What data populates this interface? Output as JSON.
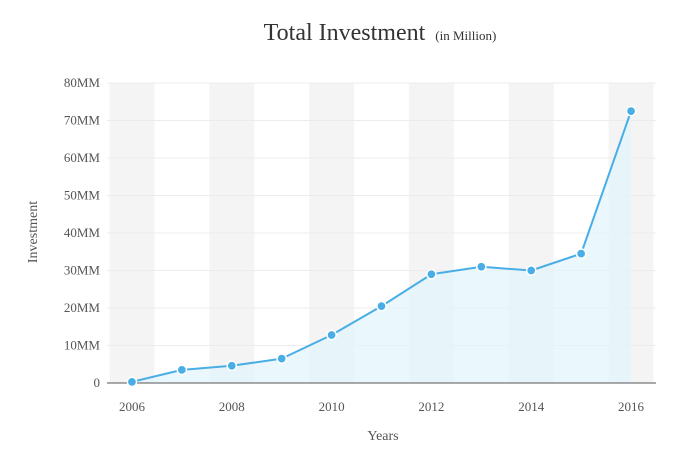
{
  "chart_data": {
    "type": "area",
    "title": "Total Investment",
    "subtitle": "(in Million)",
    "xlabel": "Years",
    "ylabel": "Investment",
    "x": [
      2006,
      2007,
      2008,
      2009,
      2010,
      2011,
      2012,
      2013,
      2014,
      2015,
      2016
    ],
    "series": [
      {
        "values": [
          0.3,
          3.5,
          4.6,
          6.5,
          12.8,
          20.5,
          29,
          31,
          30,
          34.5,
          72.5
        ]
      }
    ],
    "xlim": [
      2005.5,
      2016.5
    ],
    "ylim": [
      0,
      80
    ],
    "x_ticks": [
      "2006",
      "2008",
      "2010",
      "2012",
      "2014",
      "2016"
    ],
    "y_ticks": [
      "0",
      "10MM",
      "20MM",
      "30MM",
      "40MM",
      "50MM",
      "60MM",
      "70MM",
      "80MM"
    ],
    "grid": true,
    "alternating_bands": true,
    "colors": {
      "line": "#4aaee6",
      "area": "#e3f4fc",
      "band": "#f4f4f4",
      "grid": "#ececec",
      "axis": "#555555"
    }
  }
}
